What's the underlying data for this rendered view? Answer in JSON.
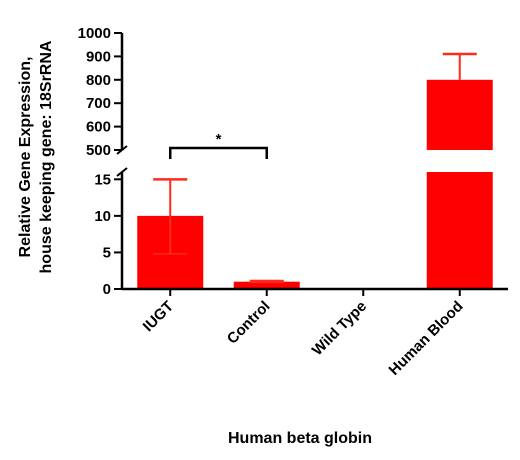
{
  "chart_data": {
    "type": "bar",
    "xlabel": "Human beta globin",
    "ylabel_lines": [
      "Relative Gene Expression,",
      "house keeping gene: 18SrRNA"
    ],
    "categories": [
      "IUGT",
      "Control",
      "Wild Type",
      "Human Blood"
    ],
    "series": [
      {
        "values": [
          10,
          1,
          0,
          800
        ],
        "error_plus": [
          5,
          0.1,
          0,
          110
        ],
        "error_minus": [
          5.2,
          0.1,
          0,
          0
        ]
      }
    ],
    "y_axis_break": true,
    "y_lower_range": [
      0,
      16
    ],
    "y_lower_ticks": [
      0,
      5,
      10,
      15
    ],
    "y_upper_range": [
      500,
      1000
    ],
    "y_upper_ticks": [
      500,
      600,
      700,
      800,
      900,
      1000
    ],
    "significance": [
      {
        "between": [
          "IUGT",
          "Control"
        ],
        "label": "*"
      }
    ],
    "bar_color": "#ff0000",
    "error_color": "#ff2a1a",
    "grid": false,
    "legend": "none"
  }
}
